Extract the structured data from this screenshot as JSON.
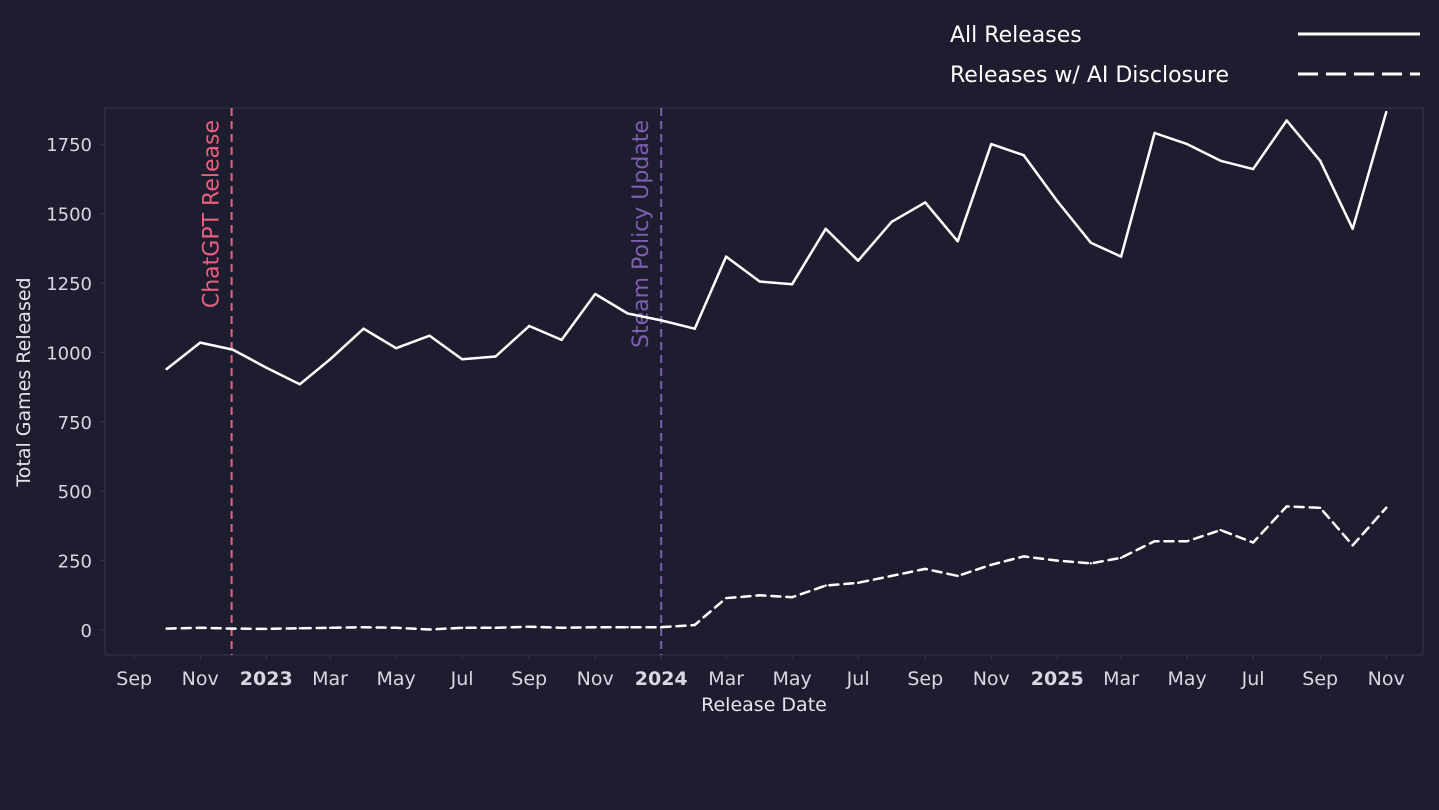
{
  "chart_data": {
    "type": "line",
    "xlabel": "Release Date",
    "ylabel": "Total Games Released",
    "ylim": [
      -90,
      1880
    ],
    "x_range": [
      "2022-08-05",
      "2025-12-05"
    ],
    "grid": false,
    "legend": "top-right",
    "y_ticks": [
      0,
      250,
      500,
      750,
      1000,
      1250,
      1500,
      1750
    ],
    "x_ticks": [
      {
        "date": "2022-09-01",
        "label": "Sep",
        "bold": false
      },
      {
        "date": "2022-11-01",
        "label": "Nov",
        "bold": false
      },
      {
        "date": "2023-01-01",
        "label": "2023",
        "bold": true
      },
      {
        "date": "2023-03-01",
        "label": "Mar",
        "bold": false
      },
      {
        "date": "2023-05-01",
        "label": "May",
        "bold": false
      },
      {
        "date": "2023-07-01",
        "label": "Jul",
        "bold": false
      },
      {
        "date": "2023-09-01",
        "label": "Sep",
        "bold": false
      },
      {
        "date": "2023-11-01",
        "label": "Nov",
        "bold": false
      },
      {
        "date": "2024-01-01",
        "label": "2024",
        "bold": true
      },
      {
        "date": "2024-03-01",
        "label": "Mar",
        "bold": false
      },
      {
        "date": "2024-05-01",
        "label": "May",
        "bold": false
      },
      {
        "date": "2024-07-01",
        "label": "Jul",
        "bold": false
      },
      {
        "date": "2024-09-01",
        "label": "Sep",
        "bold": false
      },
      {
        "date": "2024-11-01",
        "label": "Nov",
        "bold": false
      },
      {
        "date": "2025-01-01",
        "label": "2025",
        "bold": true
      },
      {
        "date": "2025-03-01",
        "label": "Mar",
        "bold": false
      },
      {
        "date": "2025-05-01",
        "label": "May",
        "bold": false
      },
      {
        "date": "2025-07-01",
        "label": "Jul",
        "bold": false
      },
      {
        "date": "2025-09-01",
        "label": "Sep",
        "bold": false
      },
      {
        "date": "2025-11-01",
        "label": "Nov",
        "bold": false
      }
    ],
    "x": [
      "2022-10-01",
      "2022-11-01",
      "2022-12-01",
      "2023-01-01",
      "2023-02-01",
      "2023-03-01",
      "2023-04-01",
      "2023-05-01",
      "2023-06-01",
      "2023-07-01",
      "2023-08-01",
      "2023-09-01",
      "2023-10-01",
      "2023-11-01",
      "2023-12-01",
      "2024-01-01",
      "2024-02-01",
      "2024-03-01",
      "2024-04-01",
      "2024-05-01",
      "2024-06-01",
      "2024-07-01",
      "2024-08-01",
      "2024-09-01",
      "2024-10-01",
      "2024-11-01",
      "2024-12-01",
      "2025-01-01",
      "2025-02-01",
      "2025-03-01",
      "2025-04-01",
      "2025-05-01",
      "2025-06-01",
      "2025-07-01",
      "2025-08-01",
      "2025-09-01",
      "2025-10-01",
      "2025-11-01"
    ],
    "series": [
      {
        "name": "All Releases",
        "style": "solid",
        "color": "#ffffff",
        "values": [
          940,
          1035,
          1010,
          945,
          885,
          975,
          1085,
          1015,
          1060,
          975,
          985,
          1095,
          1045,
          1210,
          1140,
          1115,
          1085,
          1345,
          1255,
          1245,
          1445,
          1330,
          1470,
          1540,
          1400,
          1750,
          1710,
          1545,
          1395,
          1345,
          1790,
          1750,
          1690,
          1660,
          1835,
          1690,
          1445,
          1865
        ]
      },
      {
        "name": "Releases w/ AI Disclosure",
        "style": "dashed",
        "color": "#ffffff",
        "values": [
          5,
          8,
          5,
          4,
          6,
          8,
          10,
          8,
          2,
          8,
          8,
          12,
          8,
          10,
          10,
          10,
          18,
          115,
          125,
          118,
          160,
          170,
          195,
          220,
          195,
          235,
          265,
          250,
          240,
          260,
          320,
          320,
          360,
          315,
          445,
          440,
          305,
          440
        ]
      }
    ],
    "annotations": [
      {
        "label": "ChatGPT Release",
        "date": "2022-11-30",
        "color": "#e8607e"
      },
      {
        "label": "Steam Policy Update",
        "date": "2024-01-01",
        "color": "#7b5fb0"
      }
    ]
  },
  "colors": {
    "background": "#1e1d2f",
    "plot_background": "#1e1d2f",
    "frame": "#34334a",
    "text": "#e4e3ec",
    "tick_text": "#d8d7e3"
  }
}
